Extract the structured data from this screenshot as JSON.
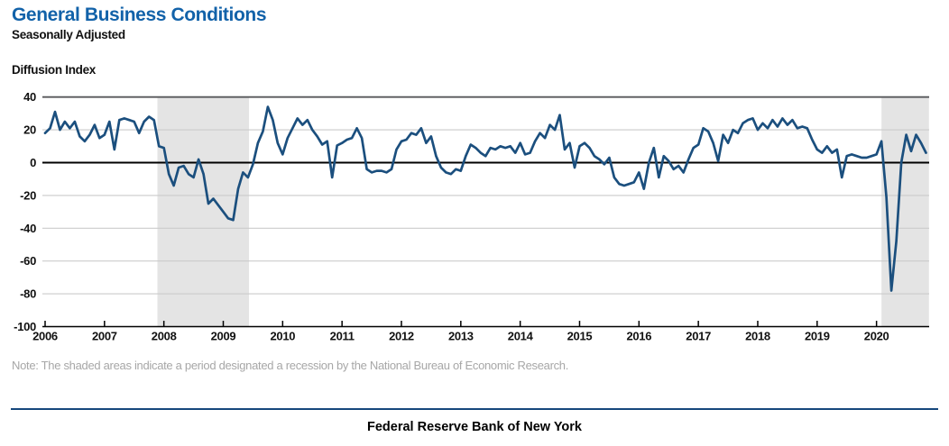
{
  "header": {
    "title": "General Business Conditions",
    "subtitle": "Seasonally Adjusted"
  },
  "y_axis_title": "Diffusion Index",
  "note": "Note: The shaded areas indicate a period designated a recession by the National Bureau of Economic Research.",
  "footer": "Federal Reserve Bank of New York",
  "colors": {
    "title": "#1262A9",
    "line": "#1B4F7E",
    "recession_band": "#E4E4E4",
    "gridline": "#CBCBCB",
    "top_border": "#57585A",
    "zero_axis": "#000000",
    "note_text": "#A7A7A7",
    "footer_rule": "#16477C",
    "axis_text": "#111111"
  },
  "chart_data": {
    "type": "line",
    "title": "General Business Conditions (Seasonally Adjusted)",
    "ylabel": "Diffusion Index",
    "xlabel": "",
    "frequency": "monthly",
    "x_start": {
      "year": 2006,
      "month": 1
    },
    "x_end": {
      "year": 2020,
      "month": 11
    },
    "x_tick_labels": [
      "2006",
      "2007",
      "2008",
      "2009",
      "2010",
      "2011",
      "2012",
      "2013",
      "2014",
      "2015",
      "2016",
      "2017",
      "2018",
      "2019",
      "2020"
    ],
    "y_ticks": [
      40,
      20,
      0,
      -20,
      -40,
      -60,
      -80,
      -100
    ],
    "ylim": [
      -100,
      40
    ],
    "grid": true,
    "legend": null,
    "values": [
      18,
      21,
      31,
      20,
      25,
      21,
      25,
      16,
      13,
      17,
      23,
      15,
      17,
      25,
      8,
      26,
      27,
      26,
      25,
      18,
      25,
      28,
      26,
      10,
      9,
      -7,
      -14,
      -3,
      -2,
      -7,
      -9,
      2,
      -7,
      -25,
      -22,
      -26,
      -30,
      -34,
      -35,
      -16,
      -6,
      -9,
      -1,
      12,
      19,
      34,
      26,
      12,
      5,
      15,
      21,
      27,
      23,
      26,
      20,
      16,
      11,
      13,
      -9,
      10.5,
      12,
      14,
      15,
      21,
      15,
      -4,
      -6,
      -5,
      -5,
      -6,
      -4,
      8,
      13,
      14,
      18,
      17,
      21,
      12,
      16,
      4,
      -3,
      -6,
      -7,
      -4,
      -5,
      4,
      11,
      9,
      6,
      4,
      9,
      8,
      10,
      9,
      10,
      6,
      12,
      5,
      6,
      13,
      18,
      15,
      23,
      20,
      29,
      8,
      12,
      -3,
      10,
      12,
      9,
      4,
      2,
      -1,
      3,
      -9,
      -13,
      -14,
      -13,
      -12,
      -6,
      -16,
      0,
      9,
      -9,
      4,
      1,
      -4,
      -2,
      -6,
      2,
      9,
      11,
      21,
      19,
      12,
      1,
      17,
      12,
      20,
      18,
      24,
      26,
      27,
      20,
      24,
      21,
      26,
      22,
      27,
      23,
      26,
      21,
      22,
      21,
      14,
      8,
      6,
      10,
      6,
      8,
      -9,
      4,
      5,
      4,
      3,
      3,
      4,
      5,
      13,
      -21,
      -78,
      -48,
      0,
      17,
      7,
      17,
      12,
      6
    ],
    "recession_bands_months": [
      [
        22.7,
        41.2
      ],
      [
        169.0,
        178.6
      ]
    ],
    "recession_band_note": "Shaded areas are NBER-designated recessions"
  }
}
